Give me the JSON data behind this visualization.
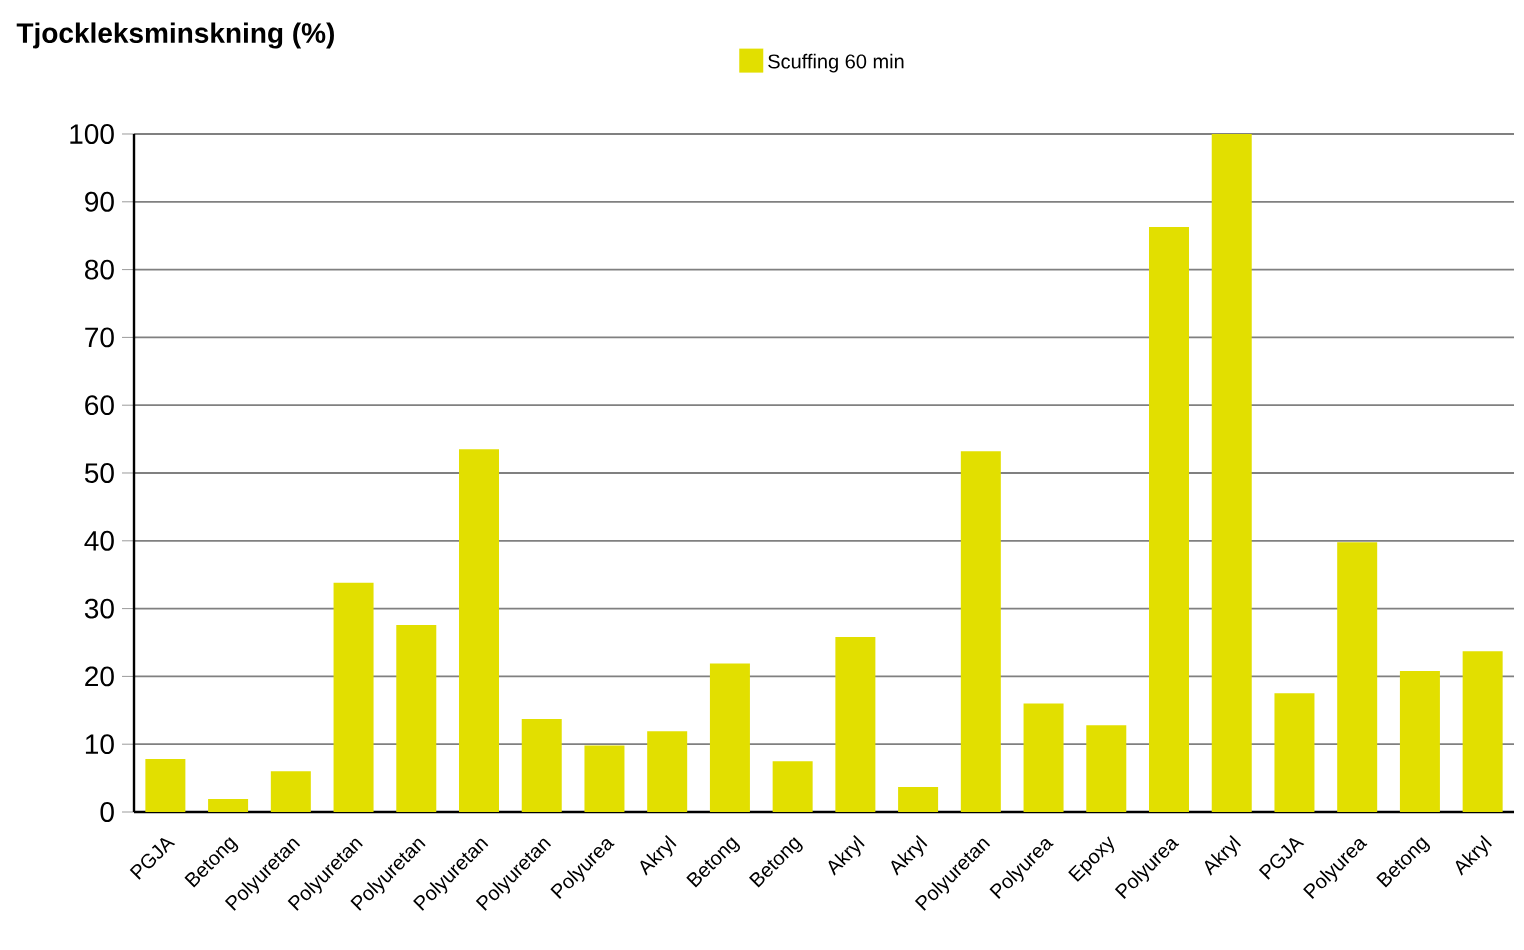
{
  "chart_data": {
    "type": "bar",
    "title": "Tjockleksminskning (%)",
    "categories": [
      "PGJA",
      "Betong",
      "Polyuretan",
      "Polyuretan",
      "Polyuretan",
      "Polyuretan",
      "Polyuretan",
      "Polyurea",
      "Akryl",
      "Betong",
      "Betong",
      "Akryl",
      "Akryl",
      "Polyuretan",
      "Polyurea",
      "Epoxy",
      "Polyurea",
      "Akryl",
      "PGJA",
      "Polyurea",
      "Betong",
      "Akryl"
    ],
    "series": [
      {
        "name": "Scuffing 60 min",
        "color": "#e2df00",
        "values": [
          7.8,
          1.9,
          6,
          33.8,
          27.6,
          53.5,
          13.7,
          9.8,
          11.9,
          21.9,
          7.5,
          25.8,
          3.7,
          53.2,
          16,
          12.8,
          86.3,
          100,
          17.5,
          39.8,
          20.8,
          23.7
        ]
      }
    ],
    "ylim": [
      0,
      100
    ],
    "yticks": [
      0,
      10,
      20,
      30,
      40,
      50,
      60,
      70,
      80,
      90,
      100
    ],
    "grid": "y",
    "legend": "top"
  }
}
